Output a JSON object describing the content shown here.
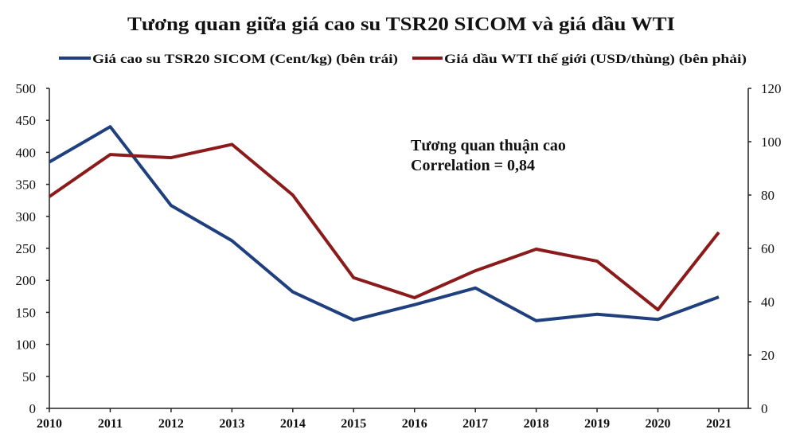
{
  "chart_data": {
    "type": "line",
    "title": "Tương quan giữa giá cao su TSR20 SICOM và giá dầu WTI",
    "categories": [
      "2010",
      "2011",
      "2012",
      "2013",
      "2014",
      "2015",
      "2016",
      "2017",
      "2018",
      "2019",
      "2020",
      "2021"
    ],
    "series": [
      {
        "name": "Giá cao su TSR20 SICOM (Cent/kg) (bên trái)",
        "axis": "left",
        "color": "#1f3f7f",
        "values": [
          385,
          440,
          317,
          262,
          182,
          138,
          162,
          188,
          137,
          147,
          139,
          174
        ]
      },
      {
        "name": "Giá dầu WTI thế giới (USD/thùng) (bên phải)",
        "axis": "right",
        "color": "#8b1a1a",
        "values": [
          79.4,
          95.2,
          94,
          99,
          80,
          49,
          41.5,
          51.6,
          59.7,
          55.2,
          37,
          66
        ]
      }
    ],
    "y_left": {
      "range": [
        0,
        500
      ],
      "ticks": [
        "0",
        "50",
        "100",
        "150",
        "200",
        "250",
        "300",
        "350",
        "400",
        "450",
        "500"
      ]
    },
    "y_right": {
      "range": [
        0,
        120
      ],
      "ticks": [
        "0",
        "20",
        "40",
        "60",
        "80",
        "100",
        "120"
      ]
    },
    "grid": false,
    "legend_position": "top",
    "annotation": [
      "Tương quan thuận cao",
      "Correlation = 0,84"
    ]
  }
}
